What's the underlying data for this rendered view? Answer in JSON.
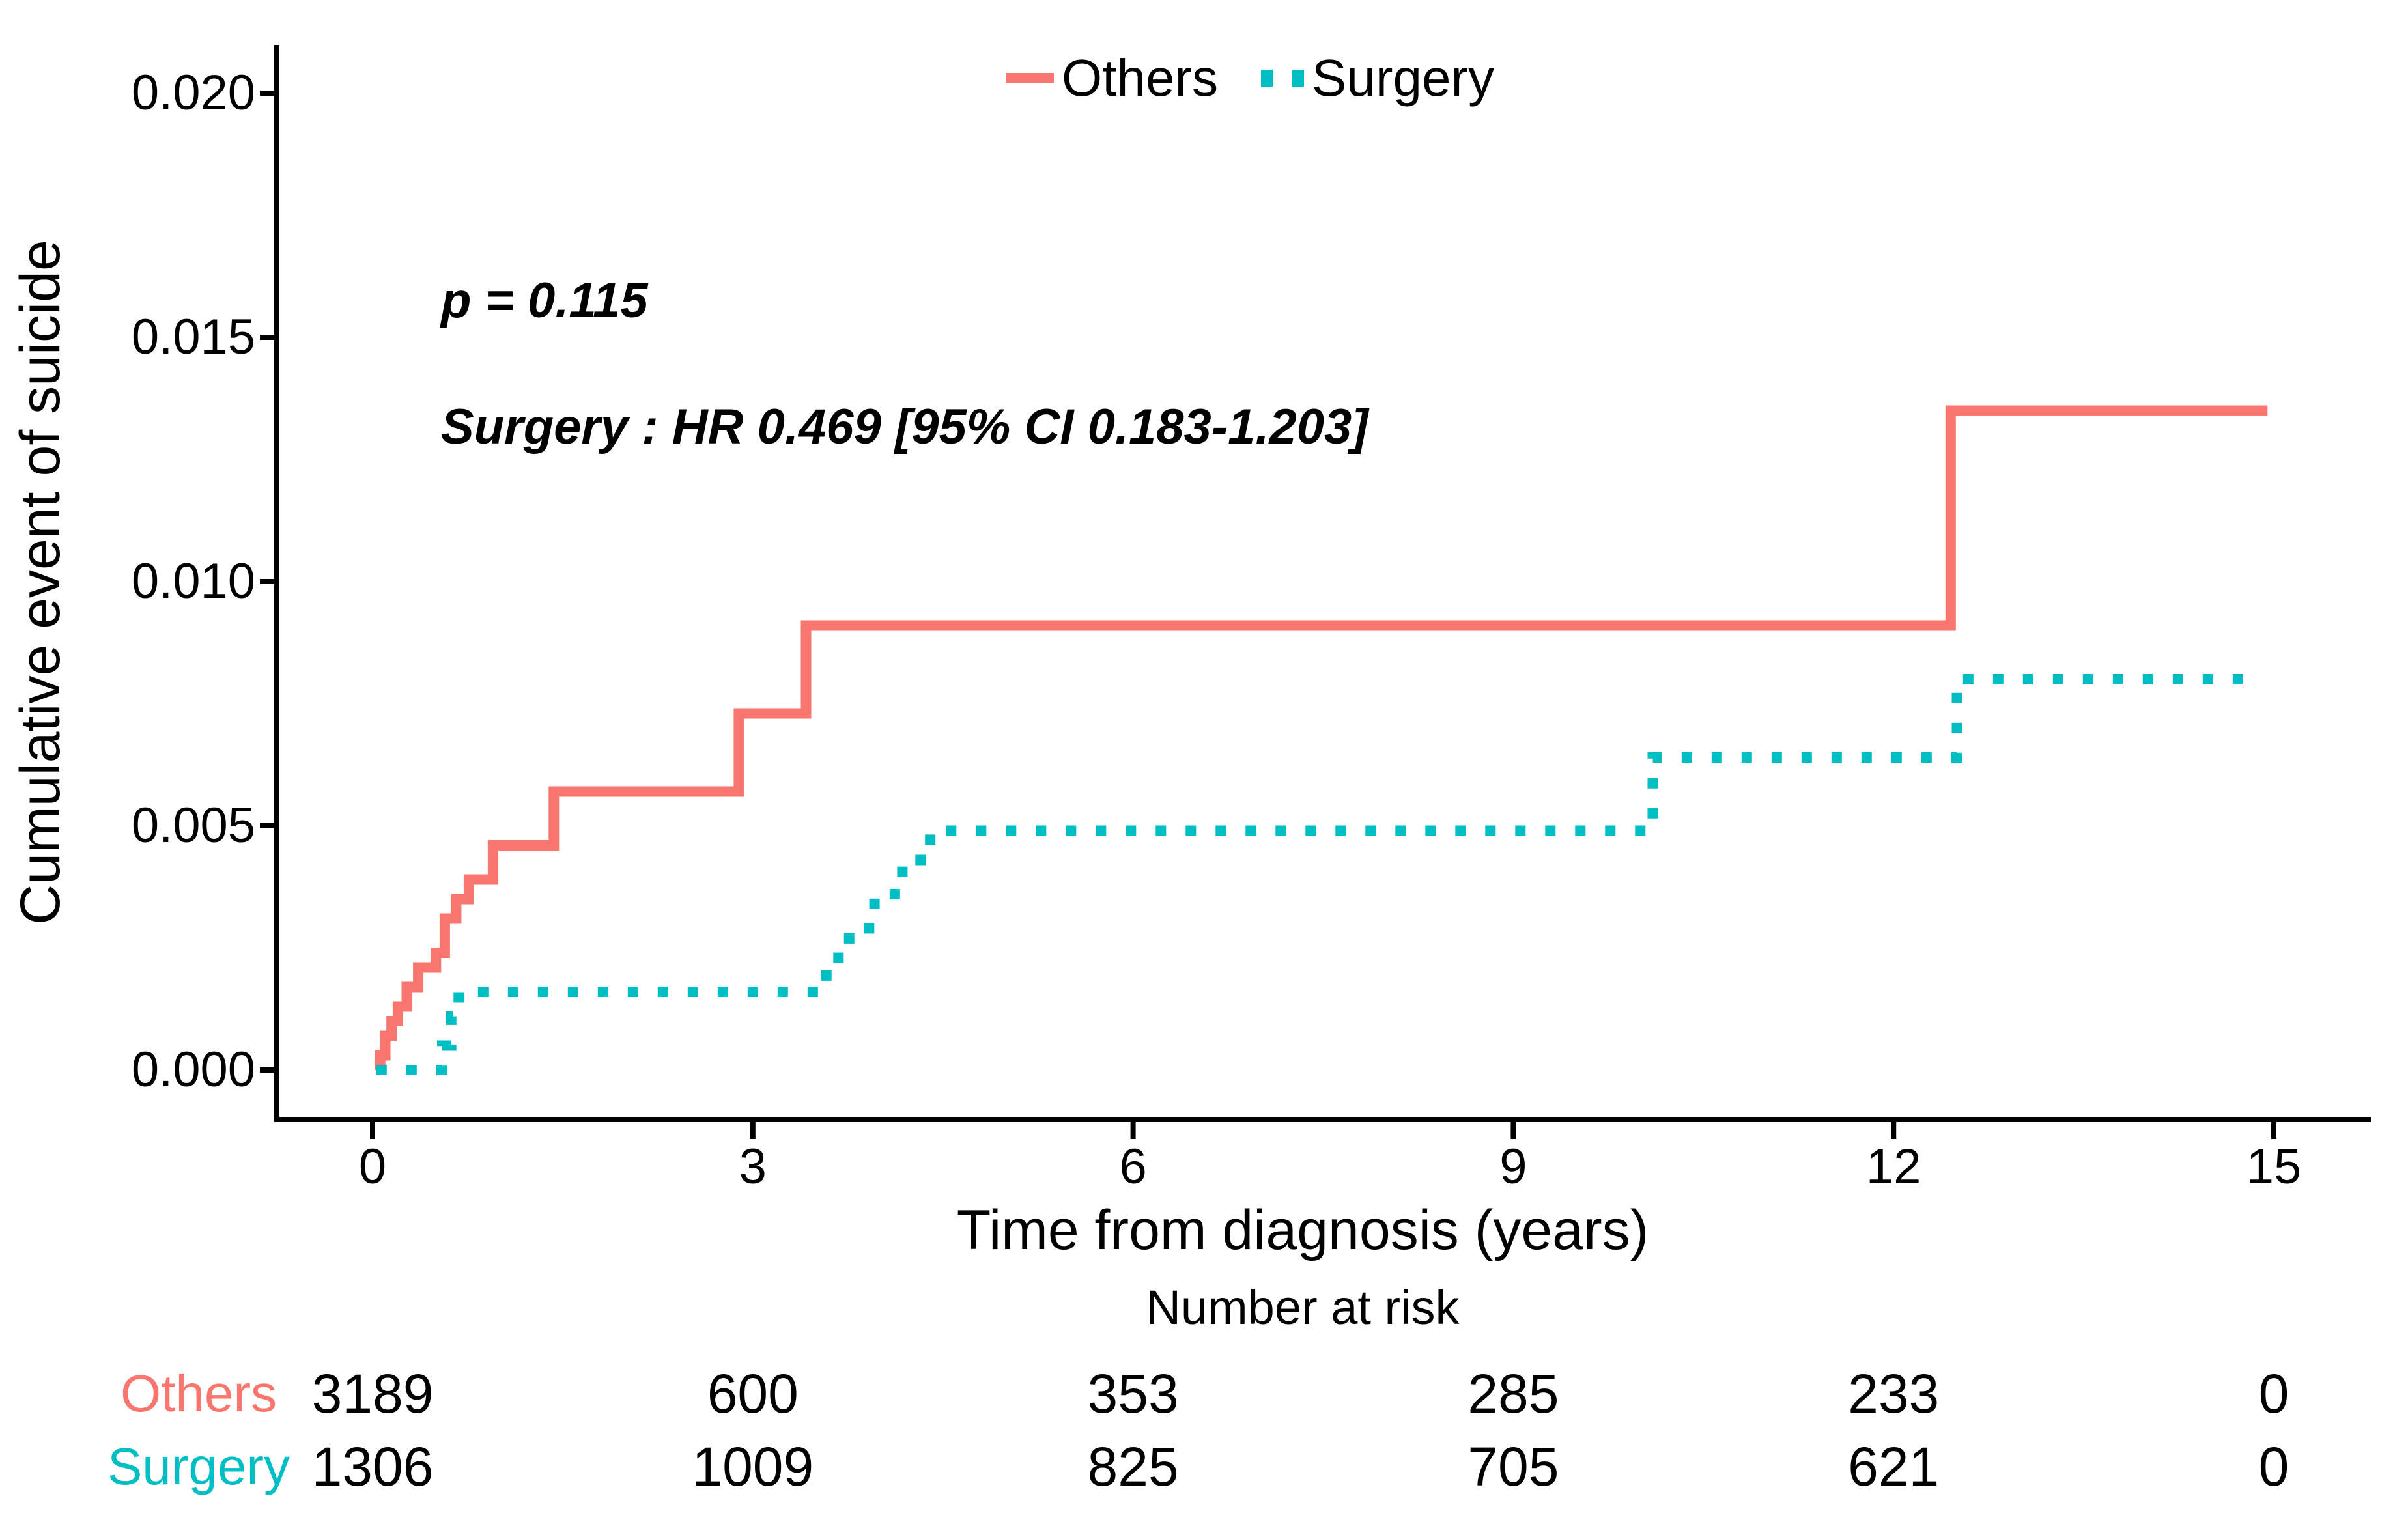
{
  "figure": {
    "y_axis_title": "Cumulative event of suicide",
    "x_axis_title": "Time from diagnosis (years)",
    "risk_table_title": "Number at risk",
    "annotations": {
      "p_value": "p = 0.115",
      "hazard_ratio": "Surgery : HR 0.469 [95% CI 0.183-1.203]"
    },
    "legend": {
      "others_label": "Others",
      "surgery_label": "Surgery"
    },
    "colors": {
      "others": "#F8766D",
      "surgery": "#00BFC4",
      "axis": "#000000",
      "background": "#ffffff"
    }
  },
  "chart_data": {
    "type": "line",
    "subtype": "cumulative-incidence-step-curves",
    "title": "",
    "xlabel": "Time from diagnosis (years)",
    "ylabel": "Cumulative event of suicide",
    "xlim": [
      0,
      15
    ],
    "ylim": [
      0,
      0.02
    ],
    "xticks": [
      0,
      3,
      6,
      9,
      12,
      15
    ],
    "ytick_labels": [
      "0.000",
      "0.005",
      "0.010",
      "0.015",
      "0.020"
    ],
    "grid": false,
    "legend_position": "top-center",
    "annotations": [
      "p = 0.115",
      "Surgery : HR 0.469 [95% CI 0.183-1.203]"
    ],
    "series": [
      {
        "name": "Others",
        "color": "#F8766D",
        "line_style": "solid",
        "start_t": 0.03,
        "end_t": 14.95,
        "steps": [
          [
            0.03,
            0.0
          ],
          [
            0.06,
            0.0003
          ],
          [
            0.1,
            0.0007
          ],
          [
            0.15,
            0.001
          ],
          [
            0.2,
            0.0013
          ],
          [
            0.27,
            0.0017
          ],
          [
            0.36,
            0.0021
          ],
          [
            0.5,
            0.0024
          ],
          [
            0.57,
            0.0031
          ],
          [
            0.66,
            0.0035
          ],
          [
            0.76,
            0.0039
          ],
          [
            0.95,
            0.0046
          ],
          [
            1.43,
            0.0057
          ],
          [
            2.89,
            0.0073
          ],
          [
            3.42,
            0.0091
          ],
          [
            12.45,
            0.0135
          ]
        ]
      },
      {
        "name": "Surgery",
        "color": "#00BFC4",
        "line_style": "dotted",
        "start_t": 0.03,
        "end_t": 14.87,
        "steps": [
          [
            0.03,
            0.0
          ],
          [
            0.55,
            0.0005
          ],
          [
            0.62,
            0.0011
          ],
          [
            0.68,
            0.0016
          ],
          [
            3.58,
            0.0023
          ],
          [
            3.76,
            0.0029
          ],
          [
            3.96,
            0.0036
          ],
          [
            4.18,
            0.0043
          ],
          [
            4.4,
            0.0049
          ],
          [
            10.1,
            0.0064
          ],
          [
            12.5,
            0.008
          ]
        ]
      }
    ],
    "risk_table": {
      "title": "Number at risk",
      "times": [
        0,
        3,
        6,
        9,
        12,
        15
      ],
      "rows": [
        {
          "name": "Others",
          "color": "#F8766D",
          "counts": [
            "3189",
            "600",
            "353",
            "285",
            "233",
            "0"
          ]
        },
        {
          "name": "Surgery",
          "color": "#00BFC4",
          "counts": [
            "1306",
            "1009",
            "825",
            "705",
            "621",
            "0"
          ]
        }
      ]
    }
  }
}
